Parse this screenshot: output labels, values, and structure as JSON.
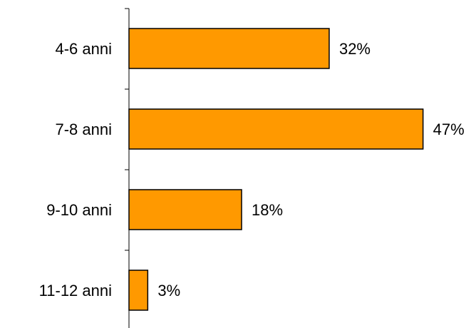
{
  "chart_data": {
    "type": "bar",
    "orientation": "horizontal",
    "categories": [
      "4-6 anni",
      "7-8 anni",
      "9-10 anni",
      "11-12 anni"
    ],
    "values": [
      32,
      47,
      18,
      3
    ],
    "value_labels": [
      "32%",
      "47%",
      "18%",
      "3%"
    ],
    "unit": "%",
    "xlim": [
      0,
      100
    ],
    "grid": false,
    "legend": "none",
    "bar_color": "#FF9900",
    "bar_border_color": "#000000"
  }
}
